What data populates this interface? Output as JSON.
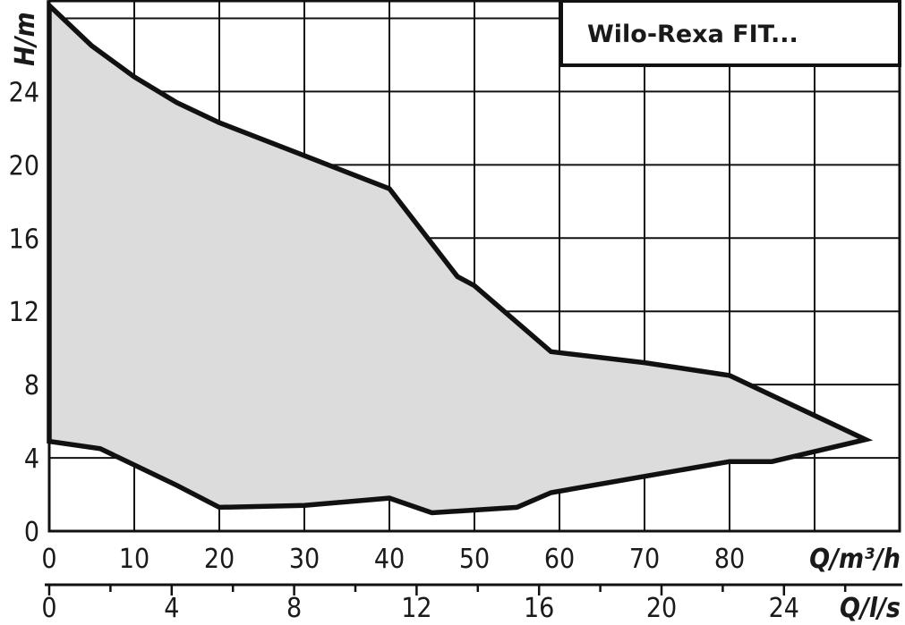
{
  "chart_data": {
    "type": "area",
    "title": "Wilo-Rexa FIT...",
    "ylabel": "H/m",
    "xlabel": "Q/m³/h",
    "x2label": "Q/l/s",
    "xlim": [
      0,
      100
    ],
    "ylim": [
      0,
      29
    ],
    "x_ticks": [
      0,
      10,
      20,
      30,
      40,
      50,
      60,
      70,
      80
    ],
    "y_ticks": [
      0,
      4,
      8,
      12,
      16,
      20,
      24
    ],
    "x2_ticks": [
      0,
      4,
      8,
      12,
      16,
      20,
      24
    ],
    "x2_factor": 3.6,
    "grid": true,
    "colors": {
      "fill": "#dcdcdc",
      "stroke": "#111111",
      "grid": "#111111"
    },
    "series": [
      {
        "points": [
          [
            0,
            28.7
          ],
          [
            5,
            26.5
          ],
          [
            10,
            24.8
          ],
          [
            15,
            23.4
          ],
          [
            20,
            22.3
          ],
          [
            30,
            20.5
          ],
          [
            40,
            18.7
          ],
          [
            48,
            13.9
          ],
          [
            50,
            13.4
          ],
          [
            59,
            9.8
          ],
          [
            70,
            9.2
          ],
          [
            80,
            8.5
          ],
          [
            96,
            5.0
          ],
          [
            85,
            3.8
          ],
          [
            80,
            3.8
          ],
          [
            59,
            2.1
          ],
          [
            55,
            1.3
          ],
          [
            45,
            1.0
          ],
          [
            40,
            1.8
          ],
          [
            30,
            1.4
          ],
          [
            20,
            1.3
          ],
          [
            15,
            2.5
          ],
          [
            6,
            4.5
          ],
          [
            0,
            4.9
          ]
        ]
      }
    ]
  }
}
